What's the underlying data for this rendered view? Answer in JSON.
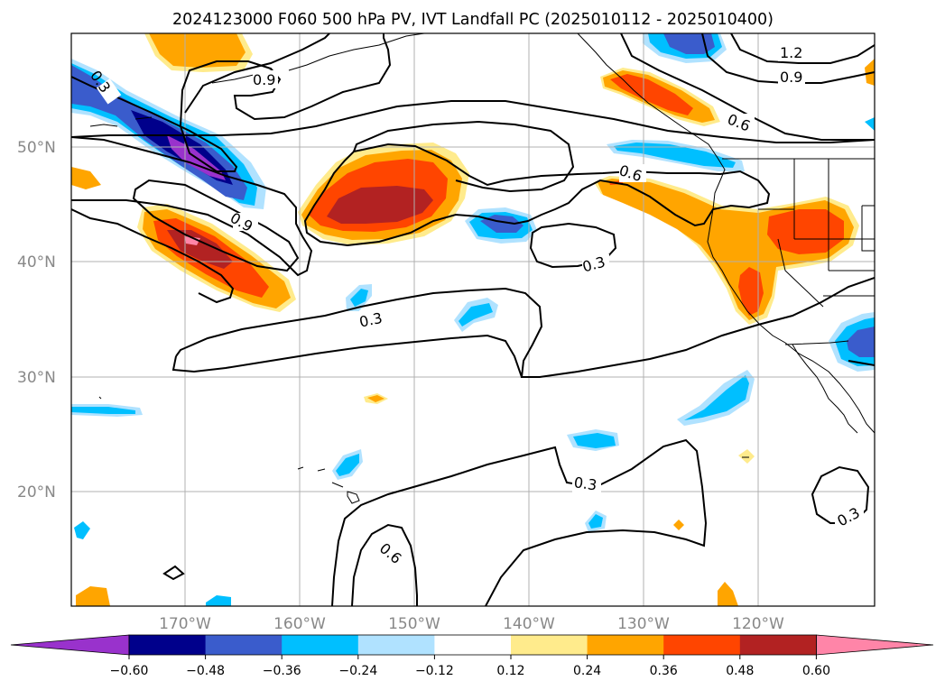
{
  "title": "2024123000 F060 500 hPa PV, IVT Landfall PC (2025010112 - 2025010400)",
  "lon_labels": [
    "170°W",
    "160°W",
    "150°W",
    "140°W",
    "130°W",
    "120°W"
  ],
  "lat_labels": [
    "50°N",
    "40°N",
    "30°N",
    "20°N"
  ],
  "contour_labels": [
    "0.3",
    "0.3",
    "0.3",
    "0.3",
    "0.3",
    "0.6",
    "0.6",
    "0.6",
    "0.9",
    "0.9",
    "0.9",
    "1.2"
  ],
  "colorbar": {
    "ticks": [
      "−0.60",
      "−0.48",
      "−0.36",
      "−0.24",
      "−0.12",
      "0.12",
      "0.24",
      "0.36",
      "0.48",
      "0.60"
    ],
    "colors": [
      "#9932CC",
      "#00008B",
      "#3A5CCC",
      "#00BFFF",
      "#B0E2FF",
      "#FFFFFF",
      "#FFEB8C",
      "#FFA500",
      "#FF4500",
      "#B22222",
      "#FF85A8"
    ]
  }
}
